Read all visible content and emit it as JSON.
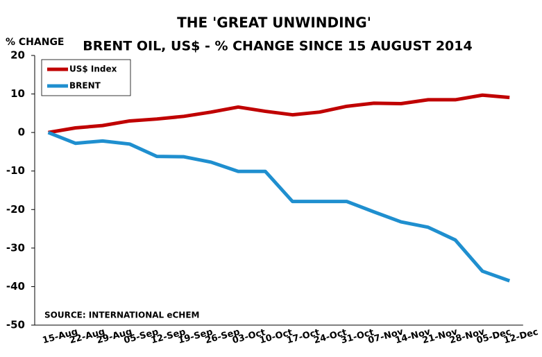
{
  "chart_data": {
    "type": "line",
    "title": "THE 'GREAT UNWINDING'",
    "subtitle": "BRENT OIL, US$ - % CHANGE SINCE 15 AUGUST 2014",
    "y_label": "% CHANGE",
    "annotation": "SOURCE: INTERNATIONAL eCHEM",
    "categories": [
      "15-Aug",
      "22-Aug",
      "29-Aug",
      "05-Sep",
      "12-Sep",
      "19-Sep",
      "26-Sep",
      "03-Oct",
      "10-Oct",
      "17-Oct",
      "24-Oct",
      "31-Oct",
      "07-Nov",
      "14-Nov",
      "21-Nov",
      "28-Nov",
      "05-Dec",
      "12-Dec"
    ],
    "series": [
      {
        "name": "US$ Index",
        "color": "#c00000",
        "values": [
          0,
          1.2,
          1.8,
          3,
          3.5,
          4.2,
          5.3,
          6.6,
          5.5,
          4.6,
          5.3,
          6.8,
          7.6,
          7.5,
          8.5,
          8.5,
          9.7,
          9.1
        ]
      },
      {
        "name": "BRENT",
        "color": "#1f8fcf",
        "values": [
          0,
          -2.8,
          -2.2,
          -3,
          -6.2,
          -6.3,
          -7.7,
          -10.1,
          -10.1,
          -17.9,
          -17.9,
          -17.9,
          -20.6,
          -23.2,
          -24.6,
          -27.9,
          -36,
          -38.5
        ]
      }
    ],
    "ylim": [
      -50,
      20
    ],
    "yticks": [
      -50,
      -40,
      -30,
      -20,
      -10,
      0,
      10,
      20
    ],
    "grid": false,
    "legend": "upper left"
  }
}
